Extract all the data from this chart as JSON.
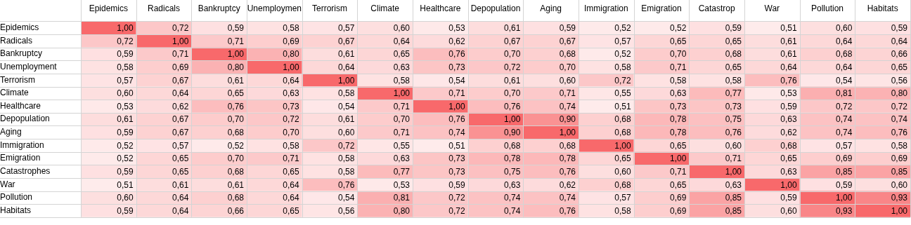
{
  "chart_data": {
    "type": "heatmap",
    "color": "#f8696b",
    "grid": true,
    "categories": [
      "Epidemics",
      "Radicals",
      "Bankruptcy",
      "Unemploymen",
      "Terrorism",
      "Climate",
      "Healthcare",
      "Depopulation",
      "Aging",
      "Immigration",
      "Emigration",
      "Catastrop",
      "War",
      "Pollution",
      "Habitats"
    ],
    "y_categories": [
      "Epidemics",
      "Radicals",
      "Bankruptcy",
      "Unemployment",
      "Terrorism",
      "Climate",
      "Healthcare",
      "Depopulation",
      "Aging",
      "Immigration",
      "Emigration",
      "Catastrophes",
      "War",
      "Pollution",
      "Habitats"
    ],
    "cells": [
      [
        1.0,
        0.72,
        0.59,
        0.58,
        0.57,
        0.6,
        0.53,
        0.61,
        0.59,
        0.52,
        0.52,
        0.59,
        0.51,
        0.6,
        0.59
      ],
      [
        0.72,
        1.0,
        0.71,
        0.69,
        0.67,
        0.64,
        0.62,
        0.67,
        0.67,
        0.57,
        0.65,
        0.65,
        0.61,
        0.64,
        0.64
      ],
      [
        0.59,
        0.71,
        1.0,
        0.8,
        0.61,
        0.65,
        0.76,
        0.7,
        0.68,
        0.52,
        0.7,
        0.68,
        0.61,
        0.68,
        0.66
      ],
      [
        0.58,
        0.69,
        0.8,
        1.0,
        0.64,
        0.63,
        0.73,
        0.72,
        0.7,
        0.58,
        0.71,
        0.65,
        0.64,
        0.64,
        0.65
      ],
      [
        0.57,
        0.67,
        0.61,
        0.64,
        1.0,
        0.58,
        0.54,
        0.61,
        0.6,
        0.72,
        0.58,
        0.58,
        0.76,
        0.54,
        0.56
      ],
      [
        0.6,
        0.64,
        0.65,
        0.63,
        0.58,
        1.0,
        0.71,
        0.7,
        0.71,
        0.55,
        0.63,
        0.77,
        0.53,
        0.81,
        0.8
      ],
      [
        0.53,
        0.62,
        0.76,
        0.73,
        0.54,
        0.71,
        1.0,
        0.76,
        0.74,
        0.51,
        0.73,
        0.73,
        0.59,
        0.72,
        0.72
      ],
      [
        0.61,
        0.67,
        0.7,
        0.72,
        0.61,
        0.7,
        0.76,
        1.0,
        0.9,
        0.68,
        0.78,
        0.75,
        0.63,
        0.74,
        0.74
      ],
      [
        0.59,
        0.67,
        0.68,
        0.7,
        0.6,
        0.71,
        0.74,
        0.9,
        1.0,
        0.68,
        0.78,
        0.76,
        0.62,
        0.74,
        0.76
      ],
      [
        0.52,
        0.57,
        0.52,
        0.58,
        0.72,
        0.55,
        0.51,
        0.68,
        0.68,
        1.0,
        0.65,
        0.6,
        0.68,
        0.57,
        0.58
      ],
      [
        0.52,
        0.65,
        0.7,
        0.71,
        0.58,
        0.63,
        0.73,
        0.78,
        0.78,
        0.65,
        1.0,
        0.71,
        0.65,
        0.69,
        0.69
      ],
      [
        0.59,
        0.65,
        0.68,
        0.65,
        0.58,
        0.77,
        0.73,
        0.75,
        0.76,
        0.6,
        0.71,
        1.0,
        0.63,
        0.85,
        0.85
      ],
      [
        0.51,
        0.61,
        0.61,
        0.64,
        0.76,
        0.53,
        0.59,
        0.63,
        0.62,
        0.68,
        0.65,
        0.63,
        1.0,
        0.59,
        0.6
      ],
      [
        0.6,
        0.64,
        0.68,
        0.64,
        0.54,
        0.81,
        0.72,
        0.74,
        0.74,
        0.57,
        0.69,
        0.85,
        0.59,
        1.0,
        0.93
      ],
      [
        0.59,
        0.64,
        0.66,
        0.65,
        0.56,
        0.8,
        0.72,
        0.74,
        0.76,
        0.58,
        0.69,
        0.85,
        0.6,
        0.93,
        1.0
      ]
    ],
    "cell_labels": [
      [
        "1,00",
        "0,72",
        "0,59",
        "0,58",
        "0,57",
        "0,60",
        "0,53",
        "0,61",
        "0,59",
        "0,52",
        "0,52",
        "0,59",
        "0,51",
        "0,60",
        "0,59"
      ],
      [
        "0,72",
        "1,00",
        "0,71",
        "0,69",
        "0,67",
        "0,64",
        "0,62",
        "0,67",
        "0,67",
        "0,57",
        "0,65",
        "0,65",
        "0,61",
        "0,64",
        "0,64"
      ],
      [
        "0,59",
        "0,71",
        "1,00",
        "0,80",
        "0,61",
        "0,65",
        "0,76",
        "0,70",
        "0,68",
        "0,52",
        "0,70",
        "0,68",
        "0,61",
        "0,68",
        "0,66"
      ],
      [
        "0,58",
        "0,69",
        "0,80",
        "1,00",
        "0,64",
        "0,63",
        "0,73",
        "0,72",
        "0,70",
        "0,58",
        "0,71",
        "0,65",
        "0,64",
        "0,64",
        "0,65"
      ],
      [
        "0,57",
        "0,67",
        "0,61",
        "0,64",
        "1,00",
        "0,58",
        "0,54",
        "0,61",
        "0,60",
        "0,72",
        "0,58",
        "0,58",
        "0,76",
        "0,54",
        "0,56"
      ],
      [
        "0,60",
        "0,64",
        "0,65",
        "0,63",
        "0,58",
        "1,00",
        "0,71",
        "0,70",
        "0,71",
        "0,55",
        "0,63",
        "0,77",
        "0,53",
        "0,81",
        "0,80"
      ],
      [
        "0,53",
        "0,62",
        "0,76",
        "0,73",
        "0,54",
        "0,71",
        "1,00",
        "0,76",
        "0,74",
        "0,51",
        "0,73",
        "0,73",
        "0,59",
        "0,72",
        "0,72"
      ],
      [
        "0,61",
        "0,67",
        "0,70",
        "0,72",
        "0,61",
        "0,70",
        "0,76",
        "1,00",
        "0,90",
        "0,68",
        "0,78",
        "0,75",
        "0,63",
        "0,74",
        "0,74"
      ],
      [
        "0,59",
        "0,67",
        "0,68",
        "0,70",
        "0,60",
        "0,71",
        "0,74",
        "0,90",
        "1,00",
        "0,68",
        "0,78",
        "0,76",
        "0,62",
        "0,74",
        "0,76"
      ],
      [
        "0,52",
        "0,57",
        "0,52",
        "0,58",
        "0,72",
        "0,55",
        "0,51",
        "0,68",
        "0,68",
        "1,00",
        "0,65",
        "0,60",
        "0,68",
        "0,57",
        "0,58"
      ],
      [
        "0,52",
        "0,65",
        "0,70",
        "0,71",
        "0,58",
        "0,63",
        "0,73",
        "0,78",
        "0,78",
        "0,65",
        "1,00",
        "0,71",
        "0,65",
        "0,69",
        "0,69"
      ],
      [
        "0,59",
        "0,65",
        "0,68",
        "0,65",
        "0,58",
        "0,77",
        "0,73",
        "0,75",
        "0,76",
        "0,60",
        "0,71",
        "1,00",
        "0,63",
        "0,85",
        "0,85"
      ],
      [
        "0,51",
        "0,61",
        "0,61",
        "0,64",
        "0,76",
        "0,53",
        "0,59",
        "0,63",
        "0,62",
        "0,68",
        "0,65",
        "0,63",
        "1,00",
        "0,59",
        "0,60"
      ],
      [
        "0,60",
        "0,64",
        "0,68",
        "0,64",
        "0,54",
        "0,81",
        "0,72",
        "0,74",
        "0,74",
        "0,57",
        "0,69",
        "0,85",
        "0,59",
        "1,00",
        "0,93"
      ],
      [
        "0,59",
        "0,64",
        "0,66",
        "0,65",
        "0,56",
        "0,80",
        "0,72",
        "0,74",
        "0,76",
        "0,58",
        "0,69",
        "0,85",
        "0,60",
        "0,93",
        "1,00"
      ]
    ]
  }
}
